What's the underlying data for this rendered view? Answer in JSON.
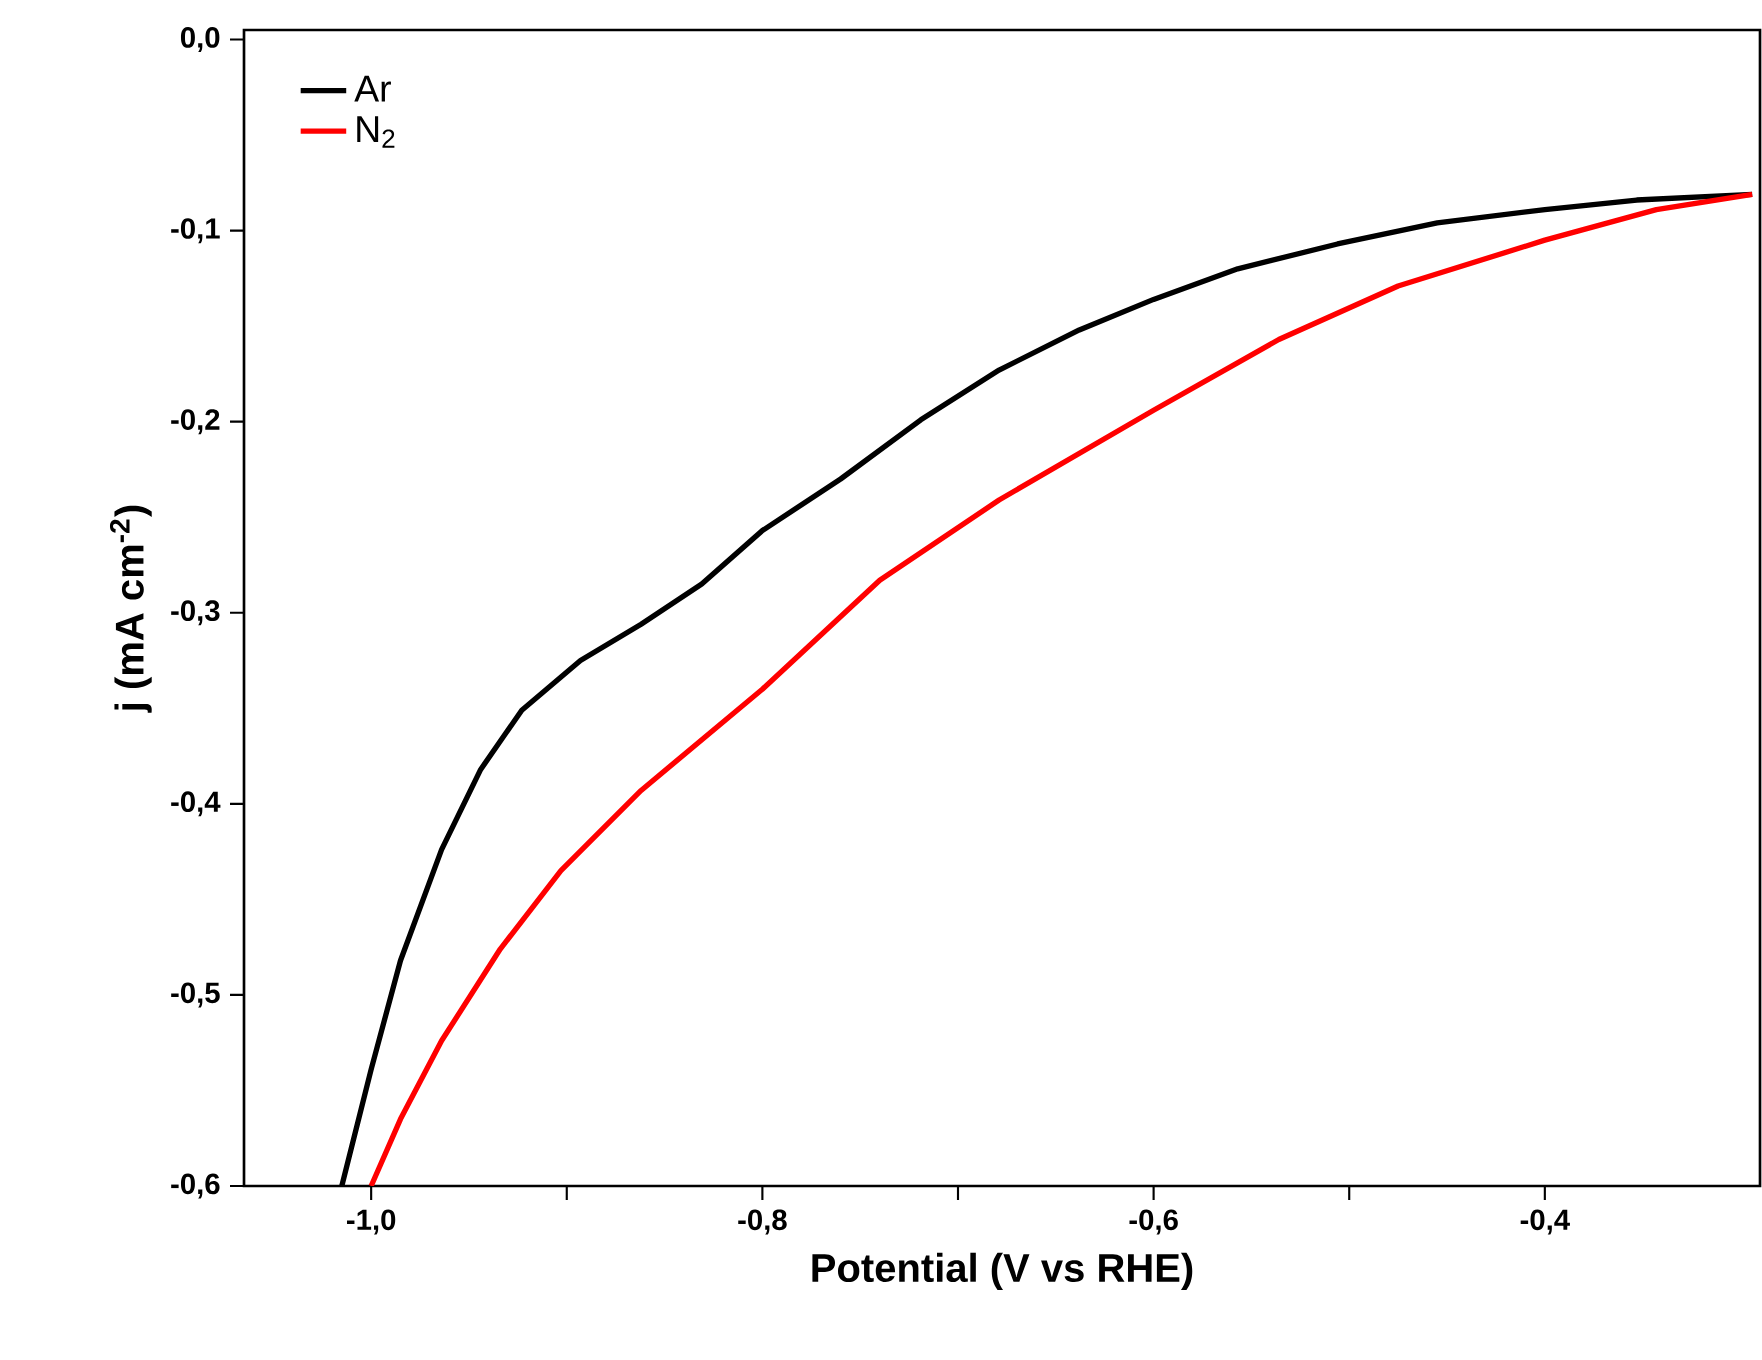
{
  "chart_data": {
    "type": "line",
    "xlabel": "Potential (V vs RHE)",
    "ylabel": "j (mA cm$^{-2}$)",
    "xlim": [
      -1.065,
      -0.29
    ],
    "ylim": [
      -0.6,
      0.005
    ],
    "xticks": [
      {
        "value": -1.0,
        "label": "-1,0"
      },
      {
        "value": -0.9,
        "label": null
      },
      {
        "value": -0.8,
        "label": "-0,8"
      },
      {
        "value": -0.7,
        "label": null
      },
      {
        "value": -0.6,
        "label": "-0,6"
      },
      {
        "value": -0.5,
        "label": null
      },
      {
        "value": -0.4,
        "label": "-0,4"
      }
    ],
    "yticks": [
      {
        "value": 0.0,
        "label": "0,0"
      },
      {
        "value": -0.1,
        "label": "-0,1"
      },
      {
        "value": -0.2,
        "label": "-0,2"
      },
      {
        "value": -0.3,
        "label": "-0,3"
      },
      {
        "value": -0.4,
        "label": "-0,4"
      },
      {
        "value": -0.5,
        "label": "-0,5"
      },
      {
        "value": -0.6,
        "label": "-0,6"
      }
    ],
    "legend": "top left",
    "grid": false,
    "marker": "none",
    "line_style": "solid",
    "series": [
      {
        "name": "Ar",
        "color": "#000000",
        "x": [
          -1.015,
          -1.0,
          -0.985,
          -0.964,
          -0.944,
          -0.923,
          -0.893,
          -0.862,
          -0.831,
          -0.8,
          -0.76,
          -0.719,
          -0.679,
          -0.638,
          -0.6,
          -0.557,
          -0.506,
          -0.455,
          -0.4,
          -0.353,
          -0.294
        ],
        "values": [
          -0.6,
          -0.539,
          -0.482,
          -0.424,
          -0.382,
          -0.351,
          -0.325,
          -0.306,
          -0.285,
          -0.257,
          -0.23,
          -0.199,
          -0.173,
          -0.152,
          -0.136,
          -0.12,
          -0.107,
          -0.096,
          -0.089,
          -0.084,
          -0.081
        ]
      },
      {
        "name": "N$_{2}$",
        "color": "#ff0000",
        "x": [
          -1.0,
          -0.985,
          -0.964,
          -0.934,
          -0.903,
          -0.862,
          -0.8,
          -0.74,
          -0.679,
          -0.6,
          -0.536,
          -0.475,
          -0.4,
          -0.343,
          -0.294
        ],
        "values": [
          -0.6,
          -0.565,
          -0.524,
          -0.476,
          -0.435,
          -0.393,
          -0.34,
          -0.283,
          -0.241,
          -0.194,
          -0.157,
          -0.129,
          -0.105,
          -0.089,
          -0.081
        ]
      }
    ]
  }
}
